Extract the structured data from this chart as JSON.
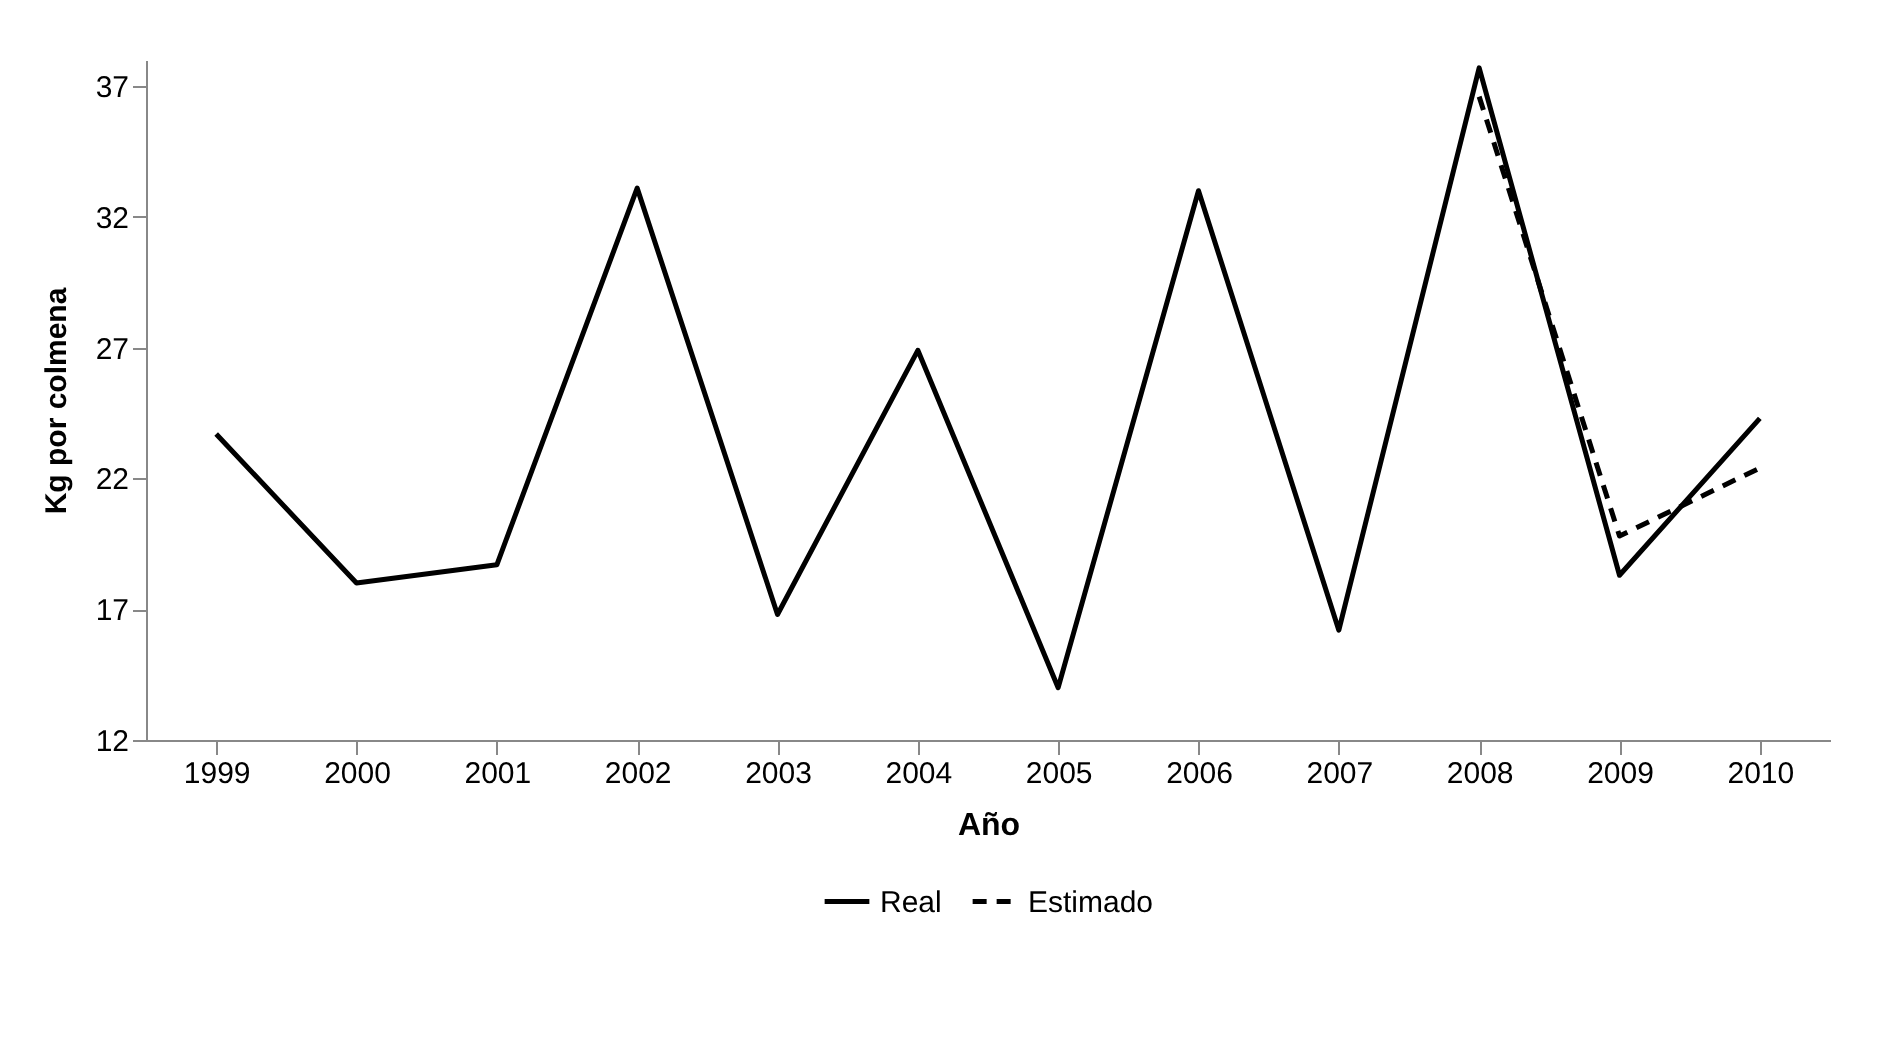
{
  "chart_data": {
    "type": "line",
    "xlabel": "Año",
    "ylabel": "Kg por colmena",
    "categories": [
      "1999",
      "2000",
      "2001",
      "2002",
      "2003",
      "2004",
      "2005",
      "2006",
      "2007",
      "2008",
      "2009",
      "2010"
    ],
    "series": [
      {
        "name": "Real",
        "color": "#000000",
        "line_style": "solid",
        "values": [
          23.7,
          18.0,
          18.7,
          33.1,
          16.8,
          26.9,
          14.0,
          33.0,
          16.2,
          37.7,
          18.3,
          24.3
        ]
      },
      {
        "name": "Estimado",
        "color": "#000000",
        "line_style": "dashed",
        "values": [
          null,
          null,
          null,
          null,
          null,
          null,
          null,
          null,
          null,
          36.6,
          19.8,
          22.4
        ]
      }
    ],
    "ylim": [
      12,
      38
    ],
    "yticks": [
      12,
      17,
      22,
      27,
      32,
      37
    ],
    "grid": false,
    "legend": "bottom",
    "marker": "none"
  }
}
